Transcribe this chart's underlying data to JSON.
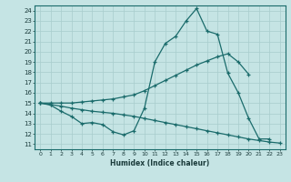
{
  "xlabel": "Humidex (Indice chaleur)",
  "background_color": "#c5e4e4",
  "grid_color": "#a8cccc",
  "line_color": "#1a6b6b",
  "xlim": [
    -0.5,
    23.5
  ],
  "ylim": [
    10.5,
    24.5
  ],
  "xticks": [
    0,
    1,
    2,
    3,
    4,
    5,
    6,
    7,
    8,
    9,
    10,
    11,
    12,
    13,
    14,
    15,
    16,
    17,
    18,
    19,
    20,
    21,
    22,
    23
  ],
  "yticks": [
    11,
    12,
    13,
    14,
    15,
    16,
    17,
    18,
    19,
    20,
    21,
    22,
    23,
    24
  ],
  "line1_x": [
    0,
    1,
    2,
    3,
    4,
    5,
    6,
    7,
    8,
    9,
    10,
    11,
    12,
    13,
    14,
    15,
    16,
    17,
    18,
    19,
    20,
    21,
    22
  ],
  "line1_y": [
    15.0,
    14.8,
    14.2,
    13.7,
    13.0,
    13.1,
    12.9,
    12.2,
    11.9,
    12.3,
    14.5,
    19.0,
    20.8,
    21.5,
    23.0,
    24.2,
    22.0,
    21.7,
    17.9,
    16.0,
    13.5,
    11.5,
    11.5
  ],
  "line2_x": [
    0,
    1,
    2,
    3,
    4,
    5,
    6,
    7,
    8,
    9,
    10,
    11,
    12,
    13,
    14,
    15,
    16,
    17,
    18,
    19,
    20
  ],
  "line2_y": [
    15.0,
    15.0,
    15.0,
    15.0,
    15.1,
    15.2,
    15.3,
    15.4,
    15.6,
    15.8,
    16.2,
    16.7,
    17.2,
    17.7,
    18.2,
    18.7,
    19.1,
    19.5,
    19.8,
    19.0,
    17.8
  ],
  "line3_x": [
    0,
    1,
    2,
    3,
    4,
    5,
    6,
    7,
    8,
    9,
    10,
    11,
    12,
    13,
    14,
    15,
    16,
    17,
    18,
    19,
    20,
    21,
    22,
    23
  ],
  "line3_y": [
    15.0,
    14.85,
    14.7,
    14.5,
    14.35,
    14.2,
    14.1,
    14.0,
    13.85,
    13.7,
    13.5,
    13.3,
    13.1,
    12.9,
    12.7,
    12.5,
    12.3,
    12.1,
    11.9,
    11.7,
    11.5,
    11.35,
    11.2,
    11.1
  ]
}
